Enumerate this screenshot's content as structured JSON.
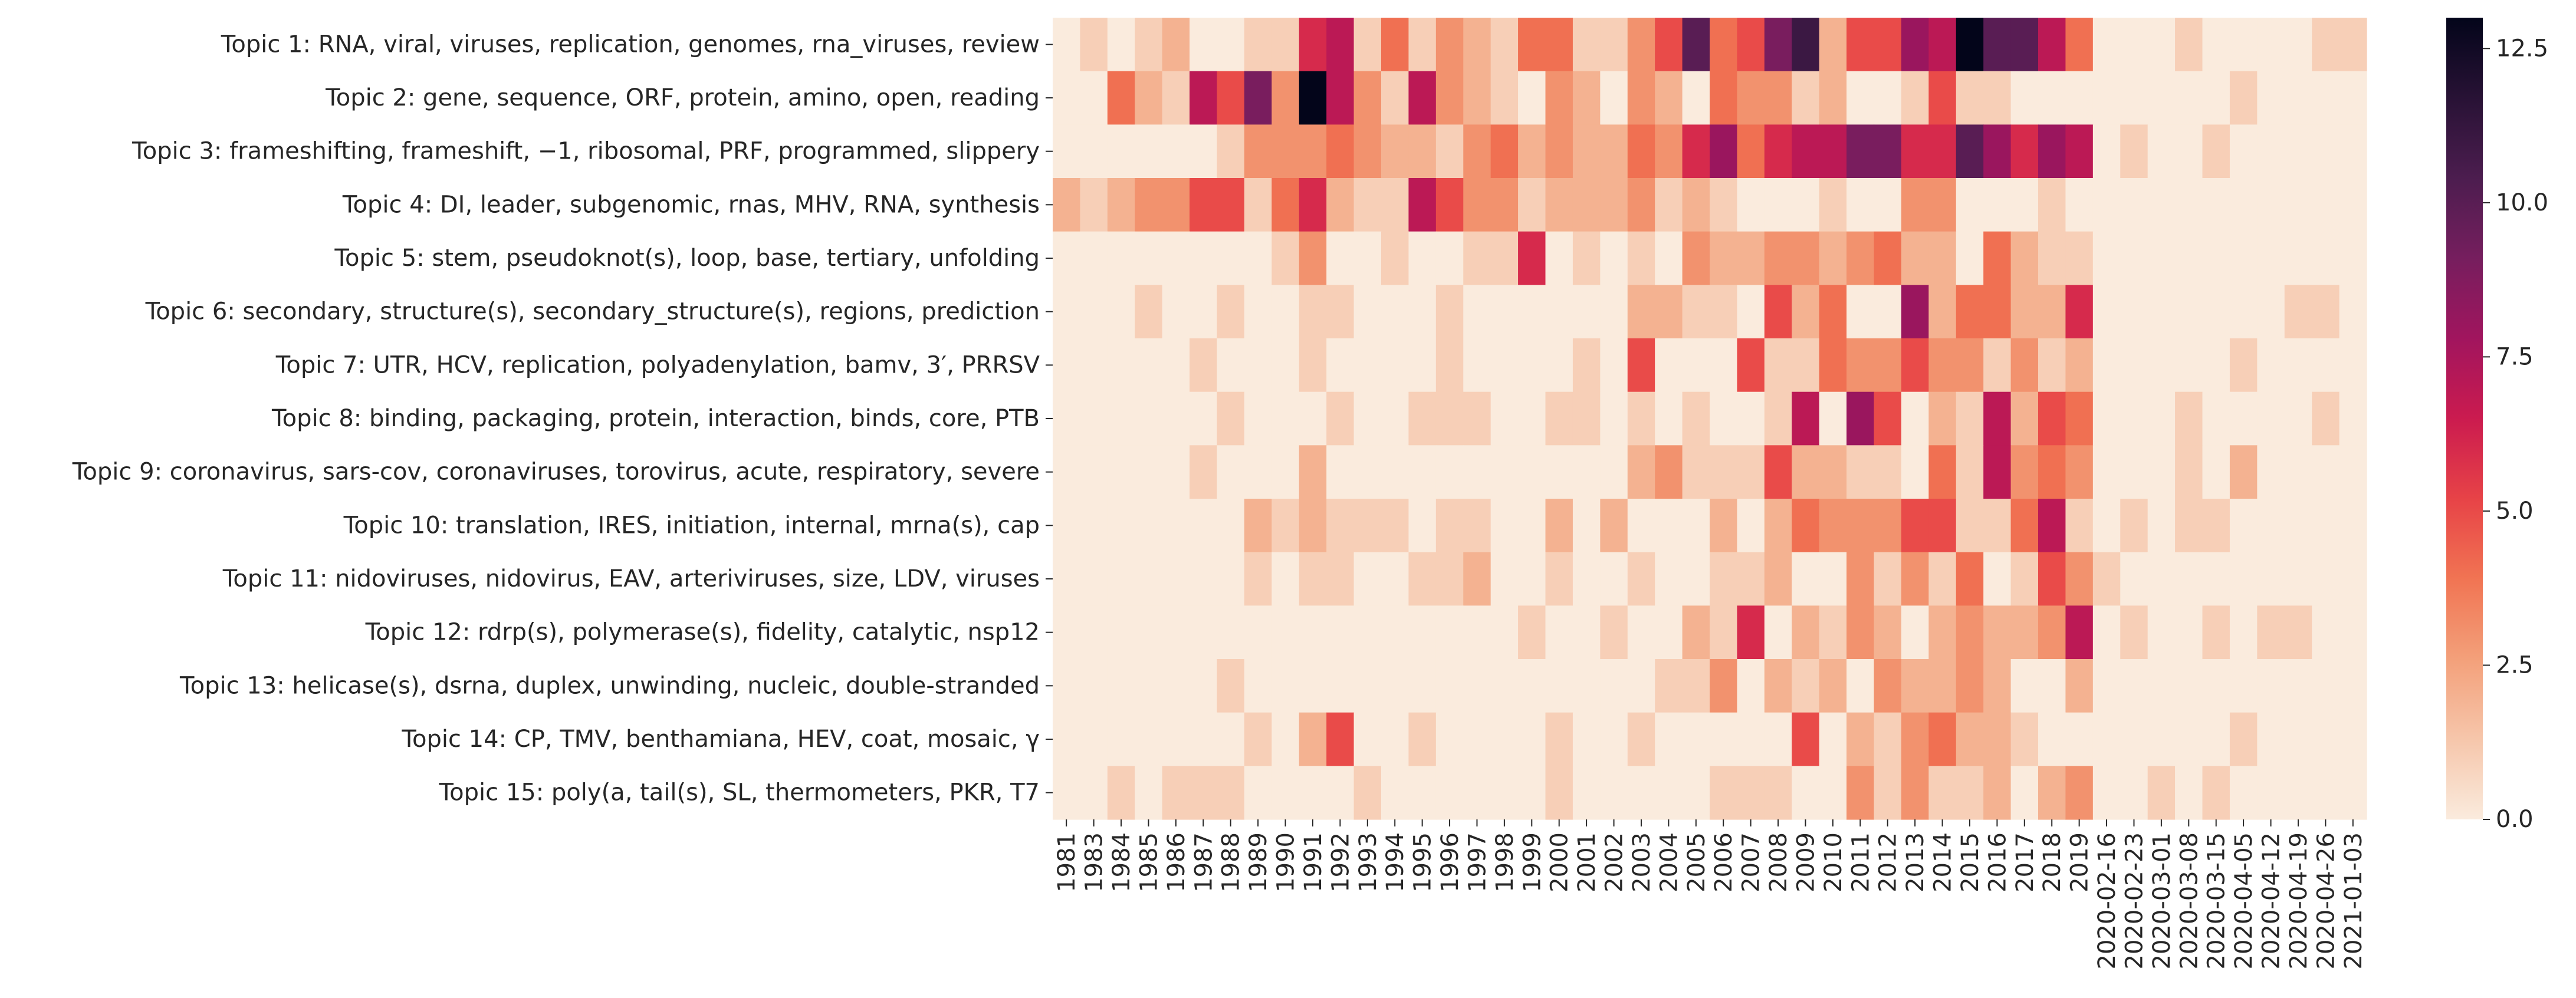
{
  "chart_data": {
    "type": "heatmap",
    "title": "",
    "xlabel": "",
    "ylabel": "",
    "rows": [
      "Topic 1: RNA, viral, viruses, replication, genomes, rna_viruses, review",
      "Topic 2: gene, sequence, ORF, protein, amino, open, reading",
      "Topic 3: frameshifting, frameshift, −1, ribosomal, PRF, programmed, slippery",
      "Topic 4: DI, leader, subgenomic, rnas, MHV, RNA, synthesis",
      "Topic 5: stem, pseudoknot(s), loop, base, tertiary, unfolding",
      "Topic 6: secondary, structure(s), secondary_structure(s), regions, prediction",
      "Topic 7: UTR, HCV, replication, polyadenylation, bamv, 3′, PRRSV",
      "Topic 8: binding, packaging, protein, interaction, binds, core, PTB",
      "Topic 9: coronavirus, sars-cov, coronaviruses, torovirus, acute, respiratory, severe",
      "Topic 10: translation, IRES, initiation, internal, mrna(s), cap",
      "Topic 11: nidoviruses, nidovirus, EAV, arteriviruses, size, LDV, viruses",
      "Topic 12: rdrp(s), polymerase(s), fidelity, catalytic, nsp12",
      "Topic 13: helicase(s), dsrna, duplex, unwinding, nucleic, double-stranded",
      "Topic 14: CP, TMV, benthamiana, HEV, coat, mosaic, γ",
      "Topic 15: poly(a, tail(s), SL, thermometers, PKR, T7"
    ],
    "columns": [
      "1981",
      "1983",
      "1984",
      "1985",
      "1986",
      "1987",
      "1988",
      "1989",
      "1990",
      "1991",
      "1992",
      "1993",
      "1994",
      "1995",
      "1996",
      "1997",
      "1998",
      "1999",
      "2000",
      "2001",
      "2002",
      "2003",
      "2004",
      "2005",
      "2006",
      "2007",
      "2008",
      "2009",
      "2010",
      "2011",
      "2012",
      "2013",
      "2014",
      "2015",
      "2016",
      "2017",
      "2018",
      "2019",
      "2020-02-16",
      "2020-02-23",
      "2020-03-01",
      "2020-03-08",
      "2020-03-15",
      "2020-04-05",
      "2020-04-12",
      "2020-04-19",
      "2020-04-26",
      "2021-01-03"
    ],
    "values": [
      [
        0,
        1,
        0,
        1,
        2,
        0,
        0,
        1,
        1,
        6,
        7,
        1,
        4,
        1,
        3,
        2,
        1,
        4,
        4,
        1,
        1,
        3,
        5,
        10,
        4,
        5,
        9,
        11,
        2,
        5,
        5,
        8,
        7,
        13,
        10,
        10,
        7,
        4,
        0,
        0,
        0,
        1,
        0,
        0,
        0,
        0,
        1,
        1
      ],
      [
        0,
        0,
        4,
        2,
        1,
        7,
        5,
        9,
        3,
        13,
        7,
        3,
        1,
        7,
        3,
        2,
        1,
        0,
        3,
        2,
        0,
        3,
        2,
        0,
        4,
        3,
        3,
        1,
        2,
        0,
        0,
        1,
        5,
        1,
        1,
        0,
        0,
        0,
        0,
        0,
        0,
        0,
        0,
        1,
        0,
        0,
        0,
        0
      ],
      [
        0,
        0,
        0,
        0,
        0,
        0,
        1,
        3,
        3,
        3,
        4,
        3,
        2,
        2,
        1,
        3,
        4,
        2,
        3,
        2,
        2,
        4,
        3,
        6,
        8,
        4,
        6,
        7,
        7,
        9,
        9,
        6,
        6,
        10,
        8,
        6,
        8,
        7,
        0,
        1,
        0,
        0,
        1,
        0,
        0,
        0,
        0,
        0
      ],
      [
        2,
        1,
        2,
        3,
        3,
        5,
        5,
        1,
        4,
        6,
        2,
        1,
        1,
        7,
        5,
        3,
        3,
        1,
        2,
        2,
        2,
        3,
        1,
        2,
        1,
        0,
        0,
        0,
        1,
        0,
        0,
        3,
        3,
        0,
        0,
        0,
        1,
        0,
        0,
        0,
        0,
        0,
        0,
        0,
        0,
        0,
        0,
        0
      ],
      [
        0,
        0,
        0,
        0,
        0,
        0,
        0,
        0,
        1,
        3,
        0,
        0,
        1,
        0,
        0,
        1,
        1,
        6,
        0,
        1,
        0,
        1,
        0,
        3,
        2,
        2,
        3,
        3,
        2,
        3,
        4,
        2,
        2,
        0,
        4,
        2,
        1,
        1,
        0,
        0,
        0,
        0,
        0,
        0,
        0,
        0,
        0,
        0
      ],
      [
        0,
        0,
        0,
        1,
        0,
        0,
        1,
        0,
        0,
        1,
        1,
        0,
        0,
        0,
        1,
        0,
        0,
        0,
        0,
        0,
        0,
        2,
        2,
        1,
        1,
        0,
        5,
        2,
        4,
        0,
        0,
        8,
        2,
        4,
        4,
        2,
        2,
        6,
        0,
        0,
        0,
        0,
        0,
        0,
        0,
        1,
        1,
        0
      ],
      [
        0,
        0,
        0,
        0,
        0,
        1,
        0,
        0,
        0,
        1,
        0,
        0,
        0,
        0,
        1,
        0,
        0,
        0,
        0,
        1,
        0,
        5,
        0,
        0,
        0,
        5,
        1,
        1,
        4,
        3,
        3,
        5,
        3,
        3,
        1,
        3,
        1,
        2,
        0,
        0,
        0,
        0,
        0,
        1,
        0,
        0,
        0,
        0
      ],
      [
        0,
        0,
        0,
        0,
        0,
        0,
        1,
        0,
        0,
        0,
        1,
        0,
        0,
        1,
        1,
        1,
        0,
        0,
        1,
        1,
        0,
        1,
        0,
        1,
        0,
        0,
        1,
        7,
        0,
        8,
        5,
        0,
        2,
        1,
        7,
        2,
        5,
        4,
        0,
        0,
        0,
        1,
        0,
        0,
        0,
        0,
        1,
        0
      ],
      [
        0,
        0,
        0,
        0,
        0,
        1,
        0,
        0,
        0,
        2,
        0,
        0,
        0,
        0,
        0,
        0,
        0,
        0,
        0,
        0,
        0,
        2,
        3,
        1,
        1,
        1,
        5,
        2,
        2,
        1,
        1,
        0,
        4,
        1,
        7,
        3,
        4,
        3,
        0,
        0,
        0,
        1,
        0,
        2,
        0,
        0,
        0,
        0
      ],
      [
        0,
        0,
        0,
        0,
        0,
        0,
        0,
        2,
        1,
        2,
        1,
        1,
        1,
        0,
        1,
        1,
        0,
        0,
        2,
        0,
        2,
        0,
        0,
        0,
        2,
        0,
        2,
        4,
        3,
        3,
        3,
        5,
        5,
        1,
        1,
        4,
        7,
        1,
        0,
        1,
        0,
        1,
        1,
        0,
        0,
        0,
        0,
        0
      ],
      [
        0,
        0,
        0,
        0,
        0,
        0,
        0,
        1,
        0,
        1,
        1,
        0,
        0,
        1,
        1,
        2,
        0,
        0,
        1,
        0,
        0,
        1,
        0,
        0,
        1,
        1,
        2,
        0,
        0,
        3,
        1,
        3,
        1,
        4,
        0,
        1,
        5,
        3,
        1,
        0,
        0,
        0,
        0,
        0,
        0,
        0,
        0,
        0
      ],
      [
        0,
        0,
        0,
        0,
        0,
        0,
        0,
        0,
        0,
        0,
        0,
        0,
        0,
        0,
        0,
        0,
        0,
        1,
        0,
        0,
        1,
        0,
        0,
        2,
        1,
        6,
        0,
        2,
        1,
        3,
        2,
        0,
        2,
        3,
        2,
        2,
        3,
        7,
        0,
        1,
        0,
        0,
        1,
        0,
        1,
        1,
        0,
        0
      ],
      [
        0,
        0,
        0,
        0,
        0,
        0,
        1,
        0,
        0,
        0,
        0,
        0,
        0,
        0,
        0,
        0,
        0,
        0,
        0,
        0,
        0,
        0,
        1,
        1,
        3,
        0,
        2,
        1,
        2,
        0,
        3,
        2,
        2,
        3,
        2,
        0,
        0,
        2,
        0,
        0,
        0,
        0,
        0,
        0,
        0,
        0,
        0,
        0
      ],
      [
        0,
        0,
        0,
        0,
        0,
        0,
        0,
        1,
        0,
        2,
        5,
        0,
        0,
        1,
        0,
        0,
        0,
        0,
        1,
        0,
        0,
        1,
        0,
        0,
        0,
        0,
        0,
        5,
        0,
        2,
        1,
        3,
        4,
        2,
        2,
        1,
        0,
        0,
        0,
        0,
        0,
        0,
        0,
        1,
        0,
        0,
        0,
        0
      ],
      [
        0,
        0,
        1,
        0,
        1,
        1,
        1,
        0,
        0,
        0,
        0,
        1,
        0,
        0,
        0,
        0,
        0,
        0,
        1,
        0,
        0,
        0,
        0,
        0,
        1,
        1,
        1,
        0,
        0,
        3,
        1,
        3,
        1,
        1,
        2,
        0,
        2,
        3,
        0,
        0,
        1,
        0,
        1,
        0,
        0,
        0,
        0,
        0
      ]
    ],
    "colorbar": {
      "vmin": 0,
      "vmax": 13,
      "ticks": [
        0.0,
        2.5,
        5.0,
        7.5,
        10.0,
        12.5
      ],
      "tick_labels": [
        "0.0",
        "2.5",
        "5.0",
        "7.5",
        "10.0",
        "12.5"
      ],
      "colormap": "rocket_r"
    },
    "grid": false,
    "legend": "colorbar-right"
  }
}
